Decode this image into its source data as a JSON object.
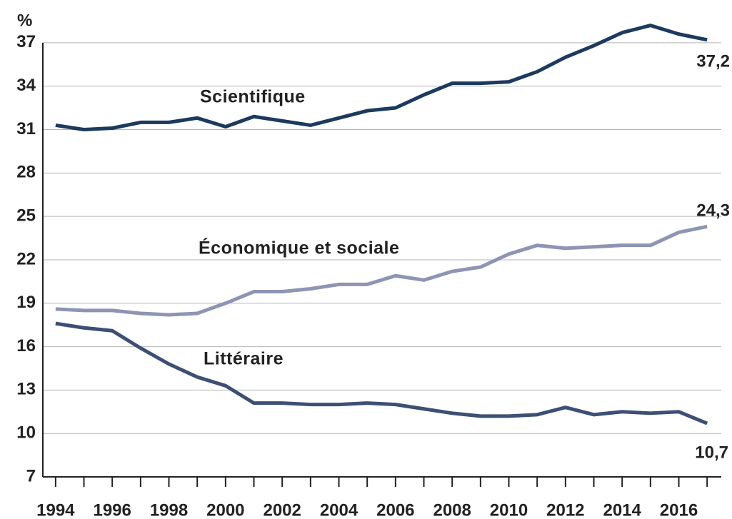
{
  "chart_data": {
    "type": "line",
    "y_unit": "%",
    "x": [
      1994,
      1995,
      1996,
      1997,
      1998,
      1999,
      2000,
      2001,
      2002,
      2003,
      2004,
      2005,
      2006,
      2007,
      2008,
      2009,
      2010,
      2011,
      2012,
      2013,
      2014,
      2015,
      2016,
      2017
    ],
    "series": [
      {
        "name": "Scientifique",
        "color": "#1c3a5e",
        "values": [
          31.3,
          31.0,
          31.1,
          31.5,
          31.5,
          31.8,
          31.2,
          31.9,
          31.6,
          31.3,
          31.8,
          32.3,
          32.5,
          33.4,
          34.2,
          34.2,
          34.3,
          35.0,
          36.0,
          36.8,
          37.7,
          38.2,
          37.6,
          37.2
        ],
        "value_labels": [
          null,
          null,
          null,
          null,
          null,
          null,
          null,
          null,
          null,
          null,
          null,
          null,
          null,
          null,
          null,
          null,
          null,
          null,
          null,
          null,
          null,
          null,
          null,
          "37,2"
        ]
      },
      {
        "name": "Économique et sociale",
        "color": "#8e94b3",
        "values": [
          18.6,
          18.5,
          18.5,
          18.3,
          18.2,
          18.3,
          19.0,
          19.8,
          19.8,
          20.0,
          20.3,
          20.3,
          20.9,
          20.6,
          21.2,
          21.5,
          22.4,
          23.0,
          22.8,
          22.9,
          23.0,
          23.0,
          23.9,
          24.3
        ],
        "value_labels": [
          null,
          null,
          null,
          null,
          null,
          null,
          null,
          null,
          null,
          null,
          null,
          null,
          null,
          null,
          null,
          null,
          null,
          null,
          null,
          null,
          null,
          null,
          null,
          "24,3"
        ]
      },
      {
        "name": "Littéraire",
        "color": "#3d4f75",
        "values": [
          17.6,
          17.3,
          17.1,
          15.9,
          14.8,
          13.9,
          13.3,
          12.1,
          12.1,
          12.0,
          12.0,
          12.1,
          12.0,
          11.7,
          11.4,
          11.2,
          11.2,
          11.3,
          11.8,
          11.3,
          11.5,
          11.4,
          11.5,
          10.7
        ],
        "value_labels": [
          null,
          null,
          null,
          null,
          null,
          null,
          null,
          null,
          null,
          null,
          null,
          null,
          null,
          null,
          null,
          null,
          null,
          null,
          null,
          null,
          null,
          null,
          null,
          "10,7"
        ]
      }
    ],
    "xlim": [
      1993.55,
      2017.5
    ],
    "xticks": [
      1994,
      1996,
      1998,
      2000,
      2002,
      2004,
      2006,
      2008,
      2010,
      2012,
      2014,
      2016
    ],
    "xminorticks": [
      1995,
      1997,
      1999,
      2001,
      2003,
      2005,
      2007,
      2009,
      2011,
      2013,
      2015,
      2017
    ],
    "ylim": [
      7,
      38.5
    ],
    "yticks": [
      7,
      10,
      13,
      16,
      19,
      22,
      25,
      28,
      31,
      34,
      37
    ],
    "grid": true
  }
}
